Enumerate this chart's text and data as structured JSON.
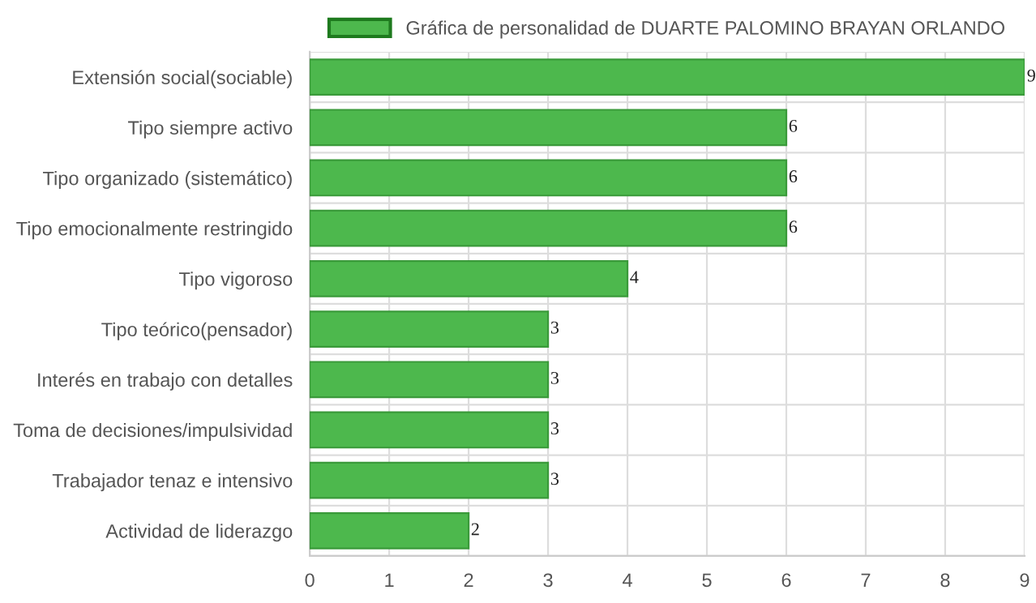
{
  "chart_data": {
    "type": "bar",
    "orientation": "horizontal",
    "categories": [
      "Extensión social(sociable)",
      "Tipo siempre activo",
      "Tipo organizado (sistemático)",
      "Tipo emocionalmente restringido",
      "Tipo vigoroso",
      "Tipo teórico(pensador)",
      "Interés en trabajo con detalles",
      "Toma de decisiones/impulsividad",
      "Trabajador tenaz e intensivo",
      "Actividad de liderazgo"
    ],
    "series": [
      {
        "name": "Gráfica de personalidad de DUARTE PALOMINO BRAYAN ORLANDO",
        "color": "#4db84d",
        "values": [
          9,
          6,
          6,
          6,
          4,
          3,
          3,
          3,
          3,
          2
        ]
      }
    ],
    "xlim": [
      0,
      9
    ],
    "xticks": [
      0,
      1,
      2,
      3,
      4,
      5,
      6,
      7,
      8,
      9
    ],
    "grid": true,
    "legend": "top",
    "data_labels": true
  }
}
